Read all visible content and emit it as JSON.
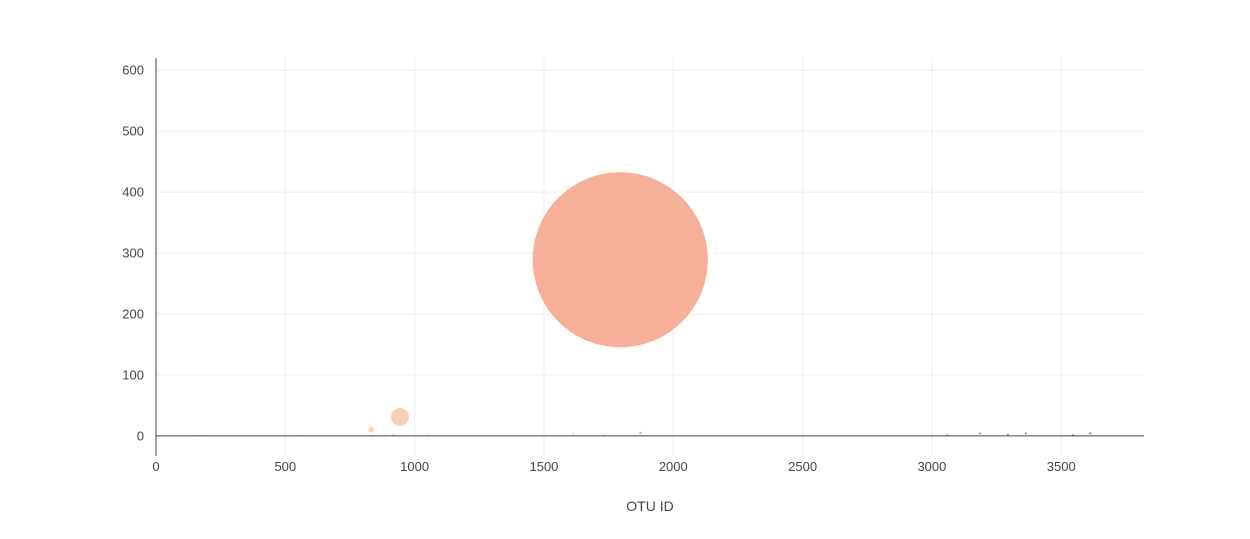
{
  "chart_data": {
    "type": "scatter",
    "variant": "bubble",
    "title": "",
    "xlabel": "OTU ID",
    "ylabel": "",
    "xlim": [
      0,
      3820
    ],
    "ylim": [
      -33,
      620
    ],
    "xticks": [
      0,
      500,
      1000,
      1500,
      2000,
      2500,
      3000,
      3500
    ],
    "yticks": [
      0,
      100,
      200,
      300,
      400,
      500,
      600
    ],
    "grid": true,
    "legend": "none",
    "colors": {
      "grid": "#eeeeee",
      "axis": "#444444",
      "colorscale_low": "#f8d3b8",
      "colorscale_mid": "#f3a285",
      "colorscale_high": "#c5387a"
    },
    "points": [
      {
        "x": 171,
        "y": 0,
        "size": 0.5,
        "color": "#fbe3d0"
      },
      {
        "x": 553,
        "y": 0,
        "size": 0.5,
        "color": "#fadcc6"
      },
      {
        "x": 832,
        "y": 10,
        "size": 10,
        "color": "#f7caa9"
      },
      {
        "x": 889,
        "y": 1,
        "size": 1,
        "color": "#f7cba9"
      },
      {
        "x": 918,
        "y": 2,
        "size": 2,
        "color": "#f7caa8"
      },
      {
        "x": 943,
        "y": 31,
        "size": 31,
        "color": "#f6c7a6"
      },
      {
        "x": 1056,
        "y": 1,
        "size": 1,
        "color": "#f6c4a2"
      },
      {
        "x": 1613,
        "y": 3,
        "size": 3,
        "color": "#f4ae8d"
      },
      {
        "x": 1733,
        "y": 1,
        "size": 1,
        "color": "#f3a787"
      },
      {
        "x": 1795,
        "y": 289,
        "size": 289,
        "color": "#f3a285"
      },
      {
        "x": 1873,
        "y": 5,
        "size": 5,
        "color": "#f29c80"
      },
      {
        "x": 3060,
        "y": 1,
        "size": 1,
        "color": "#cc4a7a"
      },
      {
        "x": 3186,
        "y": 4,
        "size": 4,
        "color": "#c8437b"
      },
      {
        "x": 3294,
        "y": 2,
        "size": 2,
        "color": "#c43d7b"
      },
      {
        "x": 3363,
        "y": 4,
        "size": 4,
        "color": "#c23a7b"
      },
      {
        "x": 3545,
        "y": 1,
        "size": 1,
        "color": "#b8317c"
      },
      {
        "x": 3612,
        "y": 4,
        "size": 4,
        "color": "#b32d7c"
      }
    ]
  }
}
